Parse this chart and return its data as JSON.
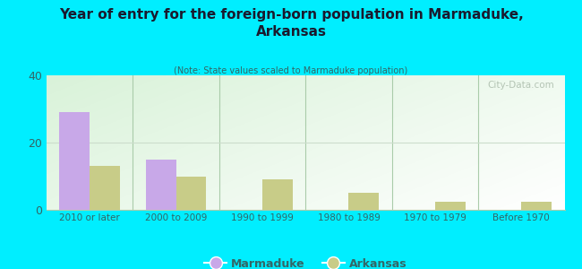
{
  "title": "Year of entry for the foreign-born population in Marmaduke,\nArkansas",
  "subtitle": "(Note: State values scaled to Marmaduke population)",
  "categories": [
    "2010 or later",
    "2000 to 2009",
    "1990 to 1999",
    "1980 to 1989",
    "1970 to 1979",
    "Before 1970"
  ],
  "marmaduke_values": [
    29,
    15,
    0,
    0,
    0,
    0
  ],
  "arkansas_values": [
    13,
    10,
    9,
    5,
    2.5,
    2.5
  ],
  "marmaduke_color": "#c8a8e8",
  "arkansas_color": "#c8cc88",
  "ylim": [
    0,
    40
  ],
  "yticks": [
    0,
    20,
    40
  ],
  "background_color": "#00eeff",
  "watermark": "City-Data.com",
  "bar_width": 0.35
}
